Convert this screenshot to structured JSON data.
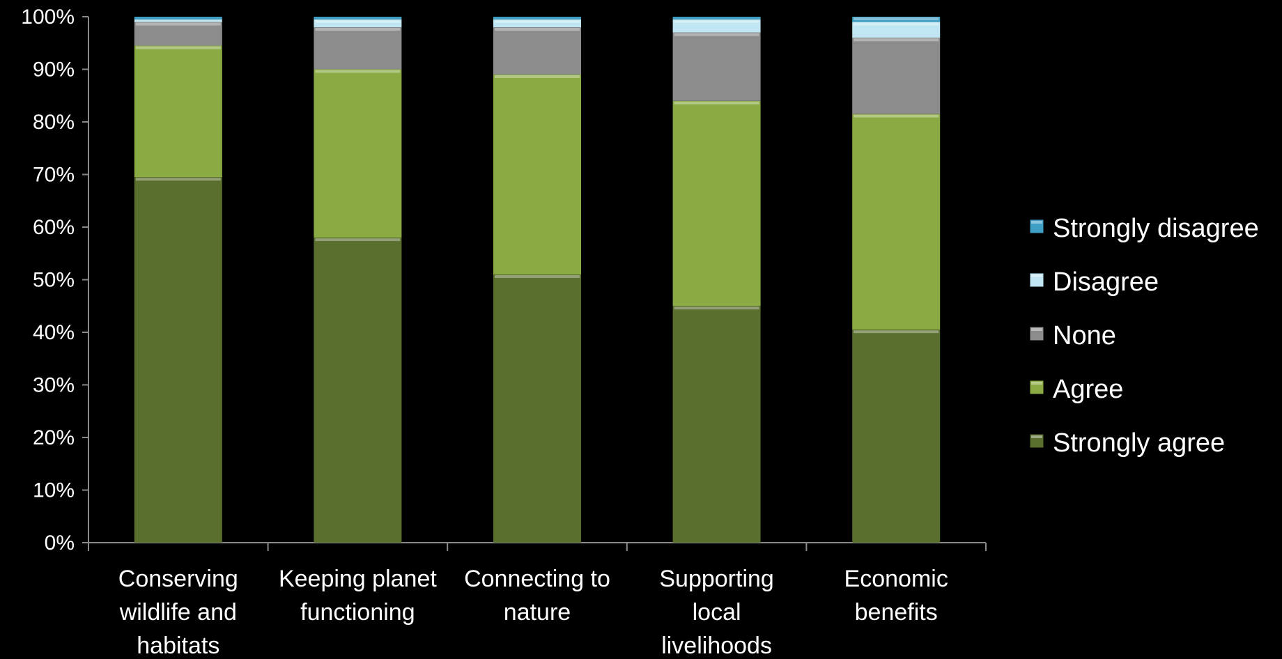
{
  "chart_data": {
    "type": "bar",
    "stacked": true,
    "percent": true,
    "title": "",
    "xlabel": "",
    "ylabel": "",
    "ylim": [
      0,
      100
    ],
    "yticks": [
      "0%",
      "10%",
      "20%",
      "30%",
      "40%",
      "50%",
      "60%",
      "70%",
      "80%",
      "90%",
      "100%"
    ],
    "grid": false,
    "legend_position": "right",
    "categories": [
      "Conserving wildlife and habitats",
      "Keeping planet functioning",
      "Connecting to nature",
      "Supporting local livelihoods",
      "Economic benefits"
    ],
    "category_lines": [
      [
        "Conserving",
        "wildlife and",
        "habitats"
      ],
      [
        "Keeping planet",
        "functioning"
      ],
      [
        "Connecting to",
        "nature"
      ],
      [
        "Supporting",
        "local",
        "livelihoods"
      ],
      [
        "Economic",
        "benefits"
      ]
    ],
    "series": [
      {
        "name": "Strongly agree",
        "color": "#5a6e2e",
        "values": [
          69.5,
          58,
          51,
          45,
          40.5
        ]
      },
      {
        "name": "Agree",
        "color": "#8aaa44",
        "values": [
          25,
          32,
          38,
          39,
          41
        ]
      },
      {
        "name": "None",
        "color": "#8c8c8c",
        "values": [
          4.5,
          8,
          9,
          13,
          14.5
        ]
      },
      {
        "name": "Disagree",
        "color": "#bfe6f2",
        "values": [
          0.5,
          1.5,
          1.5,
          2.5,
          3
        ]
      },
      {
        "name": "Strongly disagree",
        "color": "#3f9ec4",
        "values": [
          0.5,
          0.5,
          0.5,
          0.5,
          1
        ]
      }
    ],
    "legend_order": [
      "Strongly disagree",
      "Disagree",
      "None",
      "Agree",
      "Strongly agree"
    ]
  }
}
